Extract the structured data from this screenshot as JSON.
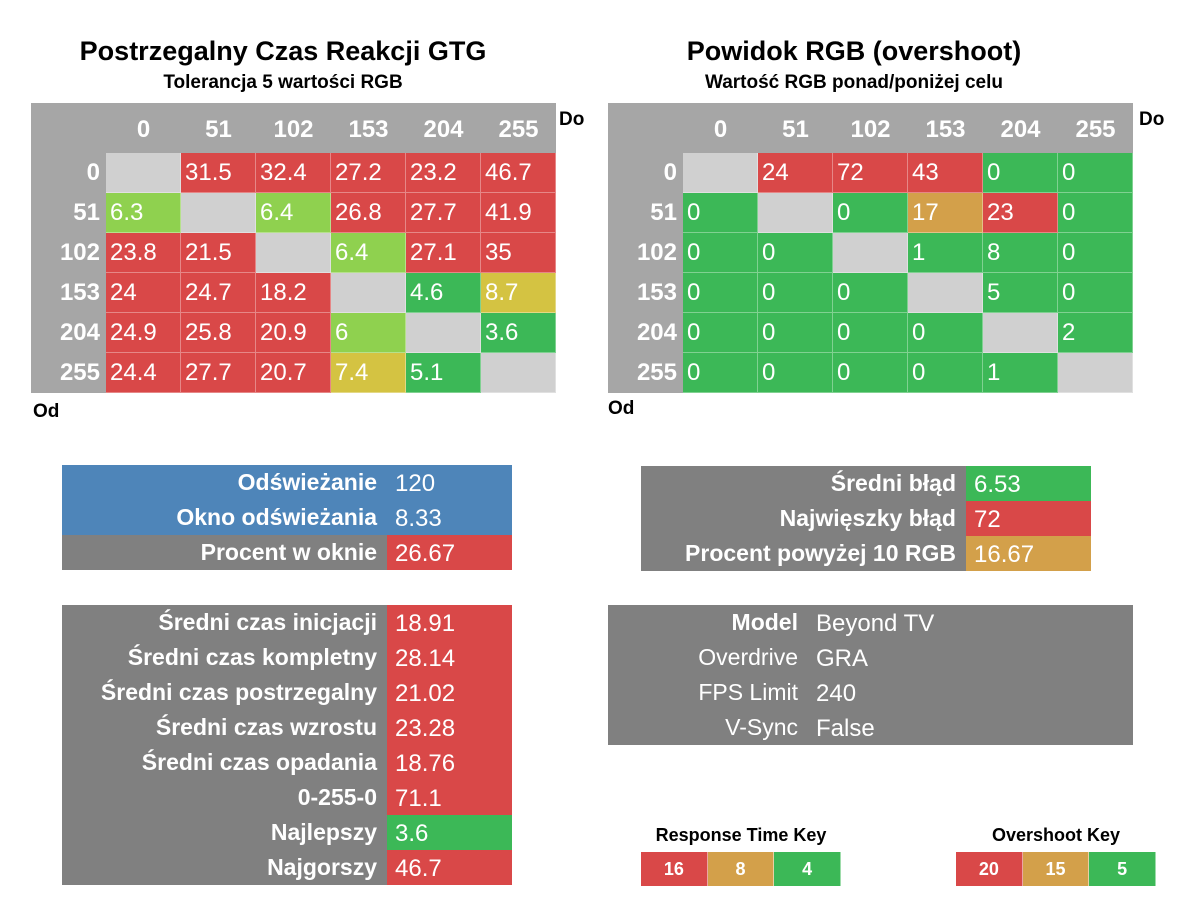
{
  "colors": {
    "red": "#d94848",
    "green": "#3cb857",
    "light_green": "#8fd14f",
    "yellow": "#d4c342",
    "orange": "#d3a04a",
    "gray": "#a6a6a6",
    "dark_gray": "#808080",
    "blue": "#4e85b9",
    "diag": "#d0d0d0"
  },
  "chart_data": [
    {
      "type": "heatmap",
      "title": "Postrzegalny Czas Reakcji GTG",
      "subtitle": "Tolerancja 5 wartości RGB",
      "xlabel": "Do",
      "ylabel": "Od",
      "columns": [
        "0",
        "51",
        "102",
        "153",
        "204",
        "255"
      ],
      "rows": [
        "0",
        "51",
        "102",
        "153",
        "204",
        "255"
      ],
      "values": [
        [
          null,
          "31.5",
          "32.4",
          "27.2",
          "23.2",
          "46.7"
        ],
        [
          "6.3",
          null,
          "6.4",
          "26.8",
          "27.7",
          "41.9"
        ],
        [
          "23.8",
          "21.5",
          null,
          "6.4",
          "27.1",
          "35"
        ],
        [
          "24",
          "24.7",
          "18.2",
          null,
          "4.6",
          "8.7"
        ],
        [
          "24.9",
          "25.8",
          "20.9",
          "6",
          null,
          "3.6"
        ],
        [
          "24.4",
          "27.7",
          "20.7",
          "7.4",
          "5.1",
          null
        ]
      ],
      "cell_colors": [
        [
          "diag",
          "red",
          "red",
          "red",
          "red",
          "red"
        ],
        [
          "light_green",
          "diag",
          "light_green",
          "red",
          "red",
          "red"
        ],
        [
          "red",
          "red",
          "diag",
          "light_green",
          "red",
          "red"
        ],
        [
          "red",
          "red",
          "red",
          "diag",
          "green",
          "yellow"
        ],
        [
          "red",
          "red",
          "red",
          "light_green",
          "diag",
          "green"
        ],
        [
          "red",
          "red",
          "red",
          "yellow",
          "green",
          "diag"
        ]
      ]
    },
    {
      "type": "heatmap",
      "title": "Powidok RGB (overshoot)",
      "subtitle": "Wartość RGB ponad/poniżej celu",
      "xlabel": "Do",
      "ylabel": "Od",
      "columns": [
        "0",
        "51",
        "102",
        "153",
        "204",
        "255"
      ],
      "rows": [
        "0",
        "51",
        "102",
        "153",
        "204",
        "255"
      ],
      "values": [
        [
          null,
          "24",
          "72",
          "43",
          "0",
          "0"
        ],
        [
          "0",
          null,
          "0",
          "17",
          "23",
          "0"
        ],
        [
          "0",
          "0",
          null,
          "1",
          "8",
          "0"
        ],
        [
          "0",
          "0",
          "0",
          null,
          "5",
          "0"
        ],
        [
          "0",
          "0",
          "0",
          "0",
          null,
          "2"
        ],
        [
          "0",
          "0",
          "0",
          "0",
          "1",
          null
        ]
      ],
      "cell_colors": [
        [
          "diag",
          "red",
          "red",
          "red",
          "green",
          "green"
        ],
        [
          "green",
          "diag",
          "green",
          "orange",
          "red",
          "green"
        ],
        [
          "green",
          "green",
          "diag",
          "green",
          "green",
          "green"
        ],
        [
          "green",
          "green",
          "green",
          "diag",
          "green",
          "green"
        ],
        [
          "green",
          "green",
          "green",
          "green",
          "diag",
          "green"
        ],
        [
          "green",
          "green",
          "green",
          "green",
          "green",
          "diag"
        ]
      ]
    }
  ],
  "refresh_panel": [
    {
      "label": "Odświeżanie",
      "value": "120",
      "label_color": "blue",
      "value_color": "blue"
    },
    {
      "label": "Okno odświeżania",
      "value": "8.33",
      "label_color": "blue",
      "value_color": "blue"
    },
    {
      "label": "Procent w oknie",
      "value": "26.67",
      "label_color": "dark_gray",
      "value_color": "red"
    }
  ],
  "error_panel": [
    {
      "label": "Średni błąd",
      "value": "6.53",
      "value_color": "green"
    },
    {
      "label": "Najwięszky błąd",
      "value": "72",
      "value_color": "red"
    },
    {
      "label": "Procent powyżej 10 RGB",
      "value": "16.67",
      "value_color": "orange"
    }
  ],
  "times_panel": [
    {
      "label": "Średni czas inicjacji",
      "value": "18.91",
      "value_color": "red"
    },
    {
      "label": "Średni czas kompletny",
      "value": "28.14",
      "value_color": "red"
    },
    {
      "label": "Średni czas postrzegalny",
      "value": "21.02",
      "value_color": "red"
    },
    {
      "label": "Średni czas wzrostu",
      "value": "23.28",
      "value_color": "red"
    },
    {
      "label": "Średni czas opadania",
      "value": "18.76",
      "value_color": "red"
    },
    {
      "label": "0-255-0",
      "value": "71.1",
      "value_color": "red"
    },
    {
      "label": "Najlepszy",
      "value": "3.6",
      "value_color": "green"
    },
    {
      "label": "Najgorszy",
      "value": "46.7",
      "value_color": "red"
    }
  ],
  "settings_panel": [
    {
      "label": "Model",
      "value": "Beyond TV",
      "bold": true
    },
    {
      "label": "Overdrive",
      "value": "GRA",
      "bold": false
    },
    {
      "label": "FPS Limit",
      "value": "240",
      "bold": false
    },
    {
      "label": "V-Sync",
      "value": "False",
      "bold": false
    }
  ],
  "response_key": {
    "title": "Response Time Key",
    "items": [
      {
        "value": "16",
        "color": "red"
      },
      {
        "value": "8",
        "color": "orange"
      },
      {
        "value": "4",
        "color": "green"
      }
    ]
  },
  "overshoot_key": {
    "title": "Overshoot Key",
    "items": [
      {
        "value": "20",
        "color": "red"
      },
      {
        "value": "15",
        "color": "orange"
      },
      {
        "value": "5",
        "color": "green"
      }
    ]
  }
}
